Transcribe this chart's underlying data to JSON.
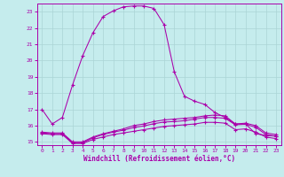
{
  "xlabel": "Windchill (Refroidissement éolien,°C)",
  "xlim": [
    -0.5,
    23.5
  ],
  "ylim": [
    14.8,
    23.5
  ],
  "yticks": [
    15,
    16,
    17,
    18,
    19,
    20,
    21,
    22,
    23
  ],
  "xticks": [
    0,
    1,
    2,
    3,
    4,
    5,
    6,
    7,
    8,
    9,
    10,
    11,
    12,
    13,
    14,
    15,
    16,
    17,
    18,
    19,
    20,
    21,
    22,
    23
  ],
  "bg_color": "#c5eced",
  "grid_color": "#aad4d6",
  "line_color": "#aa00aa",
  "line1_x": [
    0,
    1,
    2,
    3,
    4,
    5,
    6,
    7,
    8,
    9,
    10,
    11,
    12,
    13,
    14,
    15,
    16,
    17,
    18,
    19,
    20,
    21,
    22,
    23
  ],
  "line1_y": [
    17.0,
    16.1,
    16.5,
    18.5,
    20.3,
    21.7,
    22.7,
    23.05,
    23.3,
    23.35,
    23.35,
    23.2,
    22.2,
    19.3,
    17.8,
    17.5,
    17.3,
    16.8,
    16.5,
    16.1,
    16.1,
    15.5,
    15.4,
    15.35
  ],
  "line2_x": [
    0,
    1,
    2,
    3,
    4,
    5,
    6,
    7,
    8,
    9,
    10,
    11,
    12,
    13,
    14,
    15,
    16,
    17,
    18,
    19,
    20,
    21,
    22,
    23
  ],
  "line2_y": [
    15.6,
    15.55,
    15.55,
    15.0,
    15.0,
    15.3,
    15.5,
    15.65,
    15.8,
    16.0,
    16.1,
    16.25,
    16.35,
    16.4,
    16.45,
    16.5,
    16.6,
    16.65,
    16.6,
    16.1,
    16.15,
    16.0,
    15.55,
    15.45
  ],
  "line3_x": [
    0,
    1,
    2,
    3,
    4,
    5,
    6,
    7,
    8,
    9,
    10,
    11,
    12,
    13,
    14,
    15,
    16,
    17,
    18,
    19,
    20,
    21,
    22,
    23
  ],
  "line3_y": [
    15.55,
    15.5,
    15.5,
    14.95,
    14.95,
    15.25,
    15.45,
    15.6,
    15.72,
    15.88,
    15.98,
    16.12,
    16.22,
    16.25,
    16.3,
    16.4,
    16.5,
    16.5,
    16.45,
    16.05,
    16.08,
    15.9,
    15.45,
    15.35
  ],
  "line4_x": [
    0,
    1,
    2,
    3,
    4,
    5,
    6,
    7,
    8,
    9,
    10,
    11,
    12,
    13,
    14,
    15,
    16,
    17,
    18,
    19,
    20,
    21,
    22,
    23
  ],
  "line4_y": [
    15.5,
    15.45,
    15.45,
    14.9,
    14.9,
    15.15,
    15.3,
    15.45,
    15.55,
    15.65,
    15.75,
    15.85,
    15.95,
    16.0,
    16.05,
    16.1,
    16.2,
    16.2,
    16.15,
    15.75,
    15.8,
    15.6,
    15.3,
    15.2
  ]
}
